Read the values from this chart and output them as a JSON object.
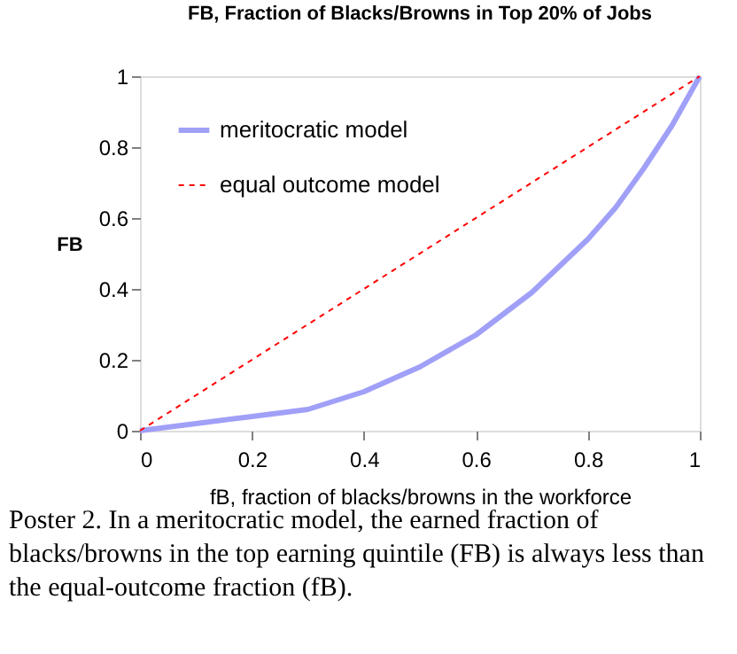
{
  "chart_data": {
    "type": "line",
    "title": "FB,  Fraction of Blacks/Browns in Top 20% of Jobs",
    "xlabel": "fB,   fraction of blacks/browns in the workforce",
    "ylabel": "FB",
    "annotations": [
      "Poster 2.  In a meritocratic model, the earned fraction of\nblacks/browns in the top earning quintile (FB) is always less than\nthe equal-outcome fraction (fB)."
    ],
    "series": [
      {
        "name": "meritocratic model",
        "color": "#a0a0f8",
        "line_style": "solid",
        "x": [
          0,
          0.1,
          0.2,
          0.3,
          0.4,
          0.5,
          0.6,
          0.7,
          0.8,
          0.85,
          0.9,
          0.95,
          1
        ],
        "values": [
          0,
          0.02,
          0.04,
          0.06,
          0.11,
          0.18,
          0.27,
          0.39,
          0.54,
          0.63,
          0.74,
          0.86,
          1
        ]
      },
      {
        "name": "equal outcome model",
        "color": "#ff0000",
        "line_style": "dashed",
        "x": [
          0,
          1
        ],
        "values": [
          0,
          1
        ]
      }
    ],
    "xlim": [
      0,
      1
    ],
    "ylim": [
      0,
      1
    ],
    "xticks": [
      0,
      0.2,
      0.4,
      0.6,
      0.8,
      1
    ],
    "yticks": [
      0,
      0.2,
      0.4,
      0.6,
      0.8,
      1
    ],
    "grid": false,
    "legend": "top left",
    "marker": "none"
  }
}
